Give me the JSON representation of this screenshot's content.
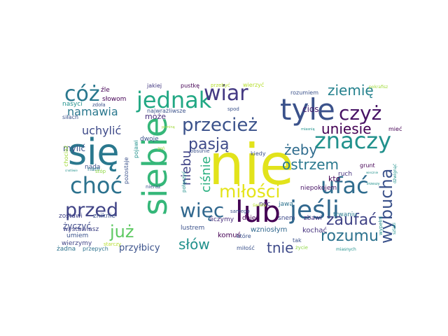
{
  "wordcloud": {
    "words": [
      {
        "text": "nie",
        "color": "#e2e31b"
      },
      {
        "text": "się",
        "color": "#2a788e"
      },
      {
        "text": "siebie",
        "color": "#35b779"
      },
      {
        "text": "lub",
        "color": "#440154"
      },
      {
        "text": "tyle",
        "color": "#3b528b"
      },
      {
        "text": "jeśli",
        "color": "#31688e"
      },
      {
        "text": "choć",
        "color": "#2c728e"
      },
      {
        "text": "jednak",
        "color": "#22a884"
      },
      {
        "text": "znaczy",
        "color": "#21918c"
      },
      {
        "text": "ufać",
        "color": "#2f6c8e"
      },
      {
        "text": "cóż",
        "color": "#2a788e"
      },
      {
        "text": "wiar",
        "color": "#443983"
      },
      {
        "text": "czyż",
        "color": "#471365"
      },
      {
        "text": "więc",
        "color": "#31688e"
      },
      {
        "text": "przed",
        "color": "#414487"
      },
      {
        "text": "przecież",
        "color": "#3b528b"
      },
      {
        "text": "miłości",
        "color": "#e4e419"
      },
      {
        "text": "już",
        "color": "#5ec962"
      },
      {
        "text": "wybucha",
        "color": "#3b528b"
      },
      {
        "text": "rozumu",
        "color": "#2c728e"
      },
      {
        "text": "pasją",
        "color": "#3e4a89"
      },
      {
        "text": "zaufać",
        "color": "#414487"
      },
      {
        "text": "ostrzem",
        "color": "#2a788e"
      },
      {
        "text": "uniesie",
        "color": "#440154"
      },
      {
        "text": "żeby",
        "color": "#2f6c8e"
      },
      {
        "text": "słów",
        "color": "#21918c"
      },
      {
        "text": "tnie",
        "color": "#3e4a89"
      },
      {
        "text": "ziemię",
        "color": "#26828e"
      },
      {
        "text": "namawia",
        "color": "#2a788e"
      },
      {
        "text": "uchylić",
        "color": "#3e4a89"
      },
      {
        "text": "ciśnie",
        "color": "#29af7f"
      },
      {
        "text": "niebu",
        "color": "#414487"
      },
      {
        "text": "przyłbicy",
        "color": "#3b528b"
      },
      {
        "text": "cios",
        "color": "#481f70"
      },
      {
        "text": "mylić",
        "color": "#3b528b"
      },
      {
        "text": "może",
        "color": "#472d7b"
      },
      {
        "text": "kto",
        "color": "#440154"
      },
      {
        "text": "życzyć",
        "color": "#3e4a89"
      },
      {
        "text": "wzniosłym",
        "color": "#31688e"
      },
      {
        "text": "komuś",
        "color": "#440154"
      },
      {
        "text": "lustrem",
        "color": "#3b528b"
      },
      {
        "text": "kochać",
        "color": "#46327e"
      },
      {
        "text": "wystawiasz",
        "color": "#414487"
      },
      {
        "text": "zostawi",
        "color": "#414487"
      },
      {
        "text": "zniknie",
        "color": "#3b528b"
      },
      {
        "text": "liczymy",
        "color": "#472d7b"
      },
      {
        "text": "daje",
        "color": "#440154"
      },
      {
        "text": "noc",
        "color": "#46327e"
      },
      {
        "text": "jawą",
        "color": "#2c728e"
      },
      {
        "text": "snem",
        "color": "#3e4a89"
      },
      {
        "text": "zbawi",
        "color": "#46327e"
      },
      {
        "text": "niepokojem",
        "color": "#471365"
      },
      {
        "text": "trwaniu",
        "color": "#2a788e"
      },
      {
        "text": "ruch",
        "color": "#46327e"
      },
      {
        "text": "grunt",
        "color": "#440154"
      },
      {
        "text": "wierzymy",
        "color": "#414487"
      },
      {
        "text": "umiem",
        "color": "#3b528b"
      },
      {
        "text": "żadna",
        "color": "#2c728e"
      },
      {
        "text": "przepych",
        "color": "#2c728e"
      },
      {
        "text": "nada",
        "color": "#3b528b"
      },
      {
        "text": "dwoje",
        "color": "#3b528b"
      },
      {
        "text": "źle",
        "color": "#440154"
      },
      {
        "text": "słowom",
        "color": "#440154"
      },
      {
        "text": "jakiej",
        "color": "#443983"
      },
      {
        "text": "pustkę",
        "color": "#440154"
      },
      {
        "text": "przebyć",
        "color": "#b5de2b"
      },
      {
        "text": "wierzyć",
        "color": "#b5de2b"
      },
      {
        "text": "rozumiem",
        "color": "#3b528b"
      },
      {
        "text": "pokrafisz",
        "color": "#a0da39"
      },
      {
        "text": "nasyci",
        "color": "#21918c"
      },
      {
        "text": "zdoła",
        "color": "#3b528b"
      },
      {
        "text": "najwrażliwsze",
        "color": "#3b528b"
      },
      {
        "text": "spod",
        "color": "#3b528b"
      },
      {
        "text": "siłach",
        "color": "#3b528b"
      },
      {
        "text": "pominą",
        "color": "#a0da39"
      },
      {
        "text": "miasnią",
        "color": "#21918c"
      },
      {
        "text": "mieć",
        "color": "#440154"
      },
      {
        "text": "zeń",
        "color": "#a0da39"
      },
      {
        "text": "obsunie",
        "color": "#3b528b"
      },
      {
        "text": "kiedy",
        "color": "#3b528b"
      },
      {
        "text": "pojawi",
        "color": "#21918c"
      },
      {
        "text": "pozostaje",
        "color": "#3b528b"
      },
      {
        "text": "chociaż",
        "color": "#a0da39"
      },
      {
        "text": "nam",
        "color": "#2a788e"
      },
      {
        "text": "stóp",
        "color": "#8fd744"
      },
      {
        "text": "nieraz",
        "color": "#3b528b"
      },
      {
        "text": "samego",
        "color": "#3b528b"
      },
      {
        "text": "połączyć",
        "color": "#21918c"
      },
      {
        "text": "które",
        "color": "#3b528b"
      },
      {
        "text": "miłość",
        "color": "#3b528b"
      },
      {
        "text": "tak",
        "color": "#3b528b"
      },
      {
        "text": "życie",
        "color": "#8fd744"
      },
      {
        "text": "miasnych",
        "color": "#21918c"
      },
      {
        "text": "wypełni",
        "color": "#21918c"
      },
      {
        "text": "starczy",
        "color": "#b5de2b"
      },
      {
        "text": "świata",
        "color": "#b5de2b"
      },
      {
        "text": "cnotliwie",
        "color": "#21918c"
      },
      {
        "text": "dźwignąć",
        "color": "#21918c"
      },
      {
        "text": "zrzeszy",
        "color": "#21918c"
      },
      {
        "text": "szlaki",
        "color": "#21918c"
      },
      {
        "text": "wiecznie",
        "color": "#21918c"
      }
    ]
  }
}
